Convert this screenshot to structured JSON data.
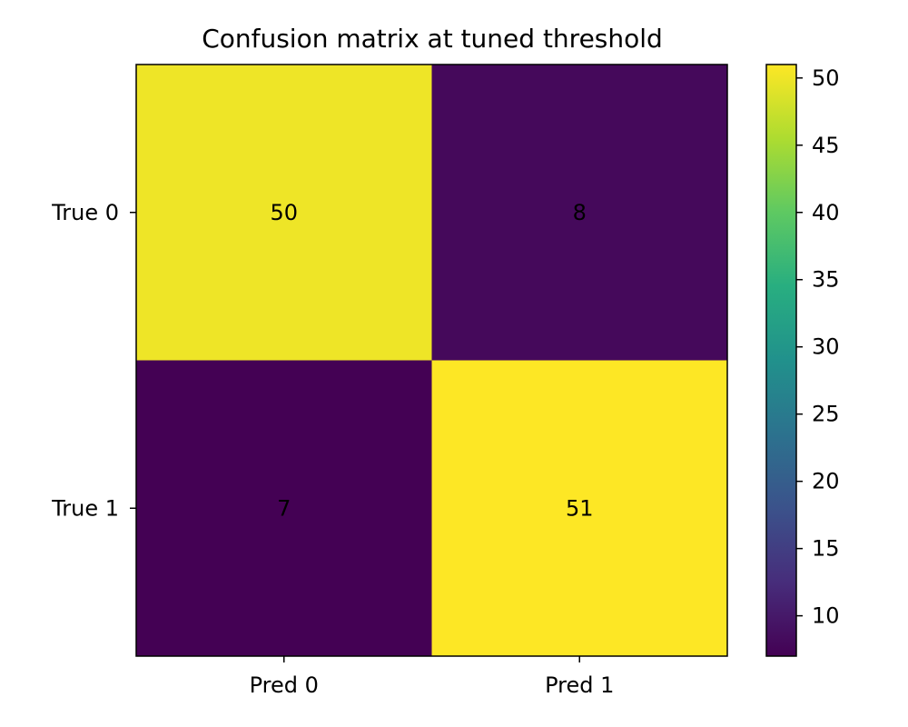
{
  "chart_data": {
    "type": "heatmap",
    "title": "Confusion matrix at tuned threshold",
    "x_labels": [
      "Pred 0",
      "Pred 1"
    ],
    "y_labels": [
      "True 0",
      "True 1"
    ],
    "values": [
      [
        50,
        8
      ],
      [
        7,
        51
      ]
    ],
    "colormap": "viridis",
    "colorbar": {
      "min": 7,
      "max": 51,
      "ticks": [
        10,
        15,
        20,
        25,
        30,
        35,
        40,
        45,
        50
      ],
      "tick_labels": [
        "10",
        "15",
        "20",
        "25",
        "30",
        "35",
        "40",
        "45",
        "50"
      ],
      "placement": "right"
    },
    "grid": false
  }
}
